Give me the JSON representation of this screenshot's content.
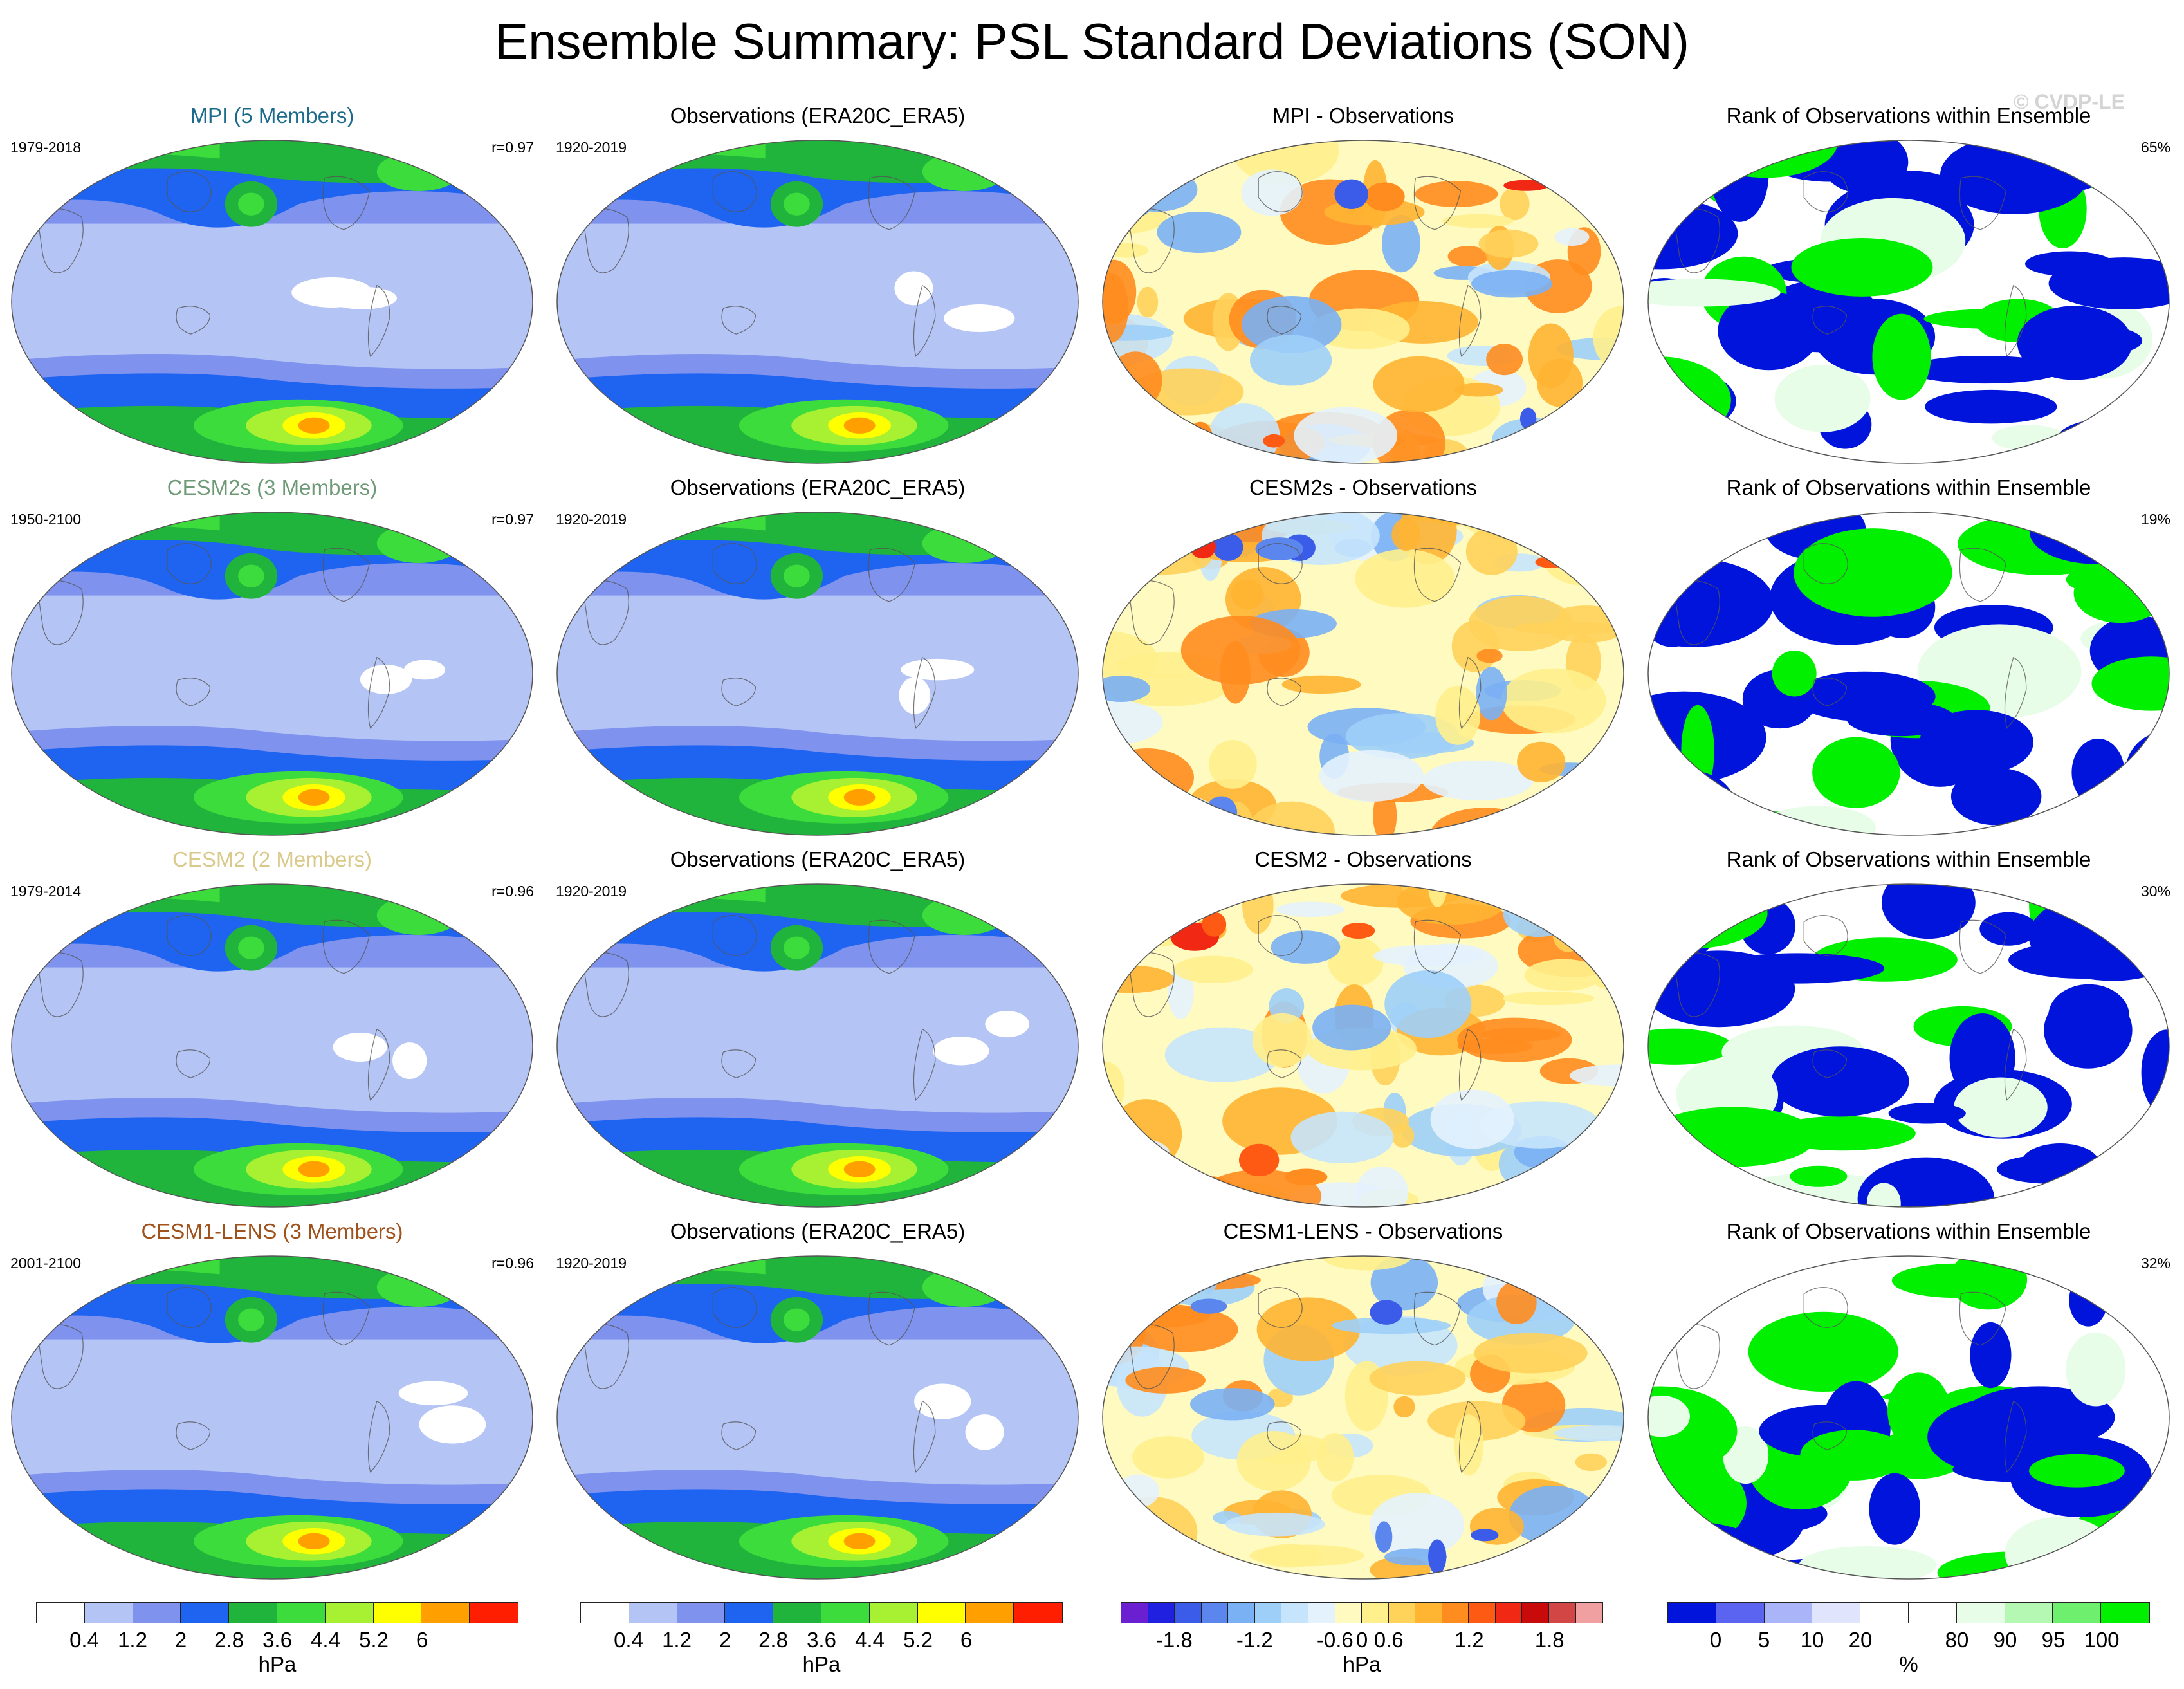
{
  "title": "Ensemble Summary: PSL Standard Deviations (SON)",
  "watermark": "© CVDP-LE",
  "chart_data": [
    {
      "type": "heatmap",
      "row": 0,
      "col": 0,
      "kind": "sd",
      "title": "MPI (5 Members)",
      "title_color": "#1c6b8c",
      "left_label": "1979-2018",
      "right_label": "r=0.97"
    },
    {
      "type": "heatmap",
      "row": 0,
      "col": 1,
      "kind": "sd",
      "title": "Observations (ERA20C_ERA5)",
      "title_color": "#000000",
      "left_label": "1920-2019",
      "right_label": ""
    },
    {
      "type": "heatmap",
      "row": 0,
      "col": 2,
      "kind": "diff",
      "title": "MPI - Observations",
      "title_color": "#000000",
      "left_label": "",
      "right_label": ""
    },
    {
      "type": "heatmap",
      "row": 0,
      "col": 3,
      "kind": "rank",
      "title": "Rank of Observations within Ensemble",
      "title_color": "#000000",
      "left_label": "",
      "right_label": "65%"
    },
    {
      "type": "heatmap",
      "row": 1,
      "col": 0,
      "kind": "sd",
      "title": "CESM2s (3 Members)",
      "title_color": "#6f9a77",
      "left_label": "1950-2100",
      "right_label": "r=0.97"
    },
    {
      "type": "heatmap",
      "row": 1,
      "col": 1,
      "kind": "sd",
      "title": "Observations (ERA20C_ERA5)",
      "title_color": "#000000",
      "left_label": "1920-2019",
      "right_label": ""
    },
    {
      "type": "heatmap",
      "row": 1,
      "col": 2,
      "kind": "diff",
      "title": "CESM2s - Observations",
      "title_color": "#000000",
      "left_label": "",
      "right_label": ""
    },
    {
      "type": "heatmap",
      "row": 1,
      "col": 3,
      "kind": "rank",
      "title": "Rank of Observations within Ensemble",
      "title_color": "#000000",
      "left_label": "",
      "right_label": "19%"
    },
    {
      "type": "heatmap",
      "row": 2,
      "col": 0,
      "kind": "sd",
      "title": "CESM2 (2 Members)",
      "title_color": "#d9c98a",
      "left_label": "1979-2014",
      "right_label": "r=0.96"
    },
    {
      "type": "heatmap",
      "row": 2,
      "col": 1,
      "kind": "sd",
      "title": "Observations (ERA20C_ERA5)",
      "title_color": "#000000",
      "left_label": "1920-2019",
      "right_label": ""
    },
    {
      "type": "heatmap",
      "row": 2,
      "col": 2,
      "kind": "diff",
      "title": "CESM2 - Observations",
      "title_color": "#000000",
      "left_label": "",
      "right_label": ""
    },
    {
      "type": "heatmap",
      "row": 2,
      "col": 3,
      "kind": "rank",
      "title": "Rank of Observations within Ensemble",
      "title_color": "#000000",
      "left_label": "",
      "right_label": "30%"
    },
    {
      "type": "heatmap",
      "row": 3,
      "col": 0,
      "kind": "sd",
      "title": "CESM1-LENS (3 Members)",
      "title_color": "#a0521d",
      "left_label": "2001-2100",
      "right_label": "r=0.96"
    },
    {
      "type": "heatmap",
      "row": 3,
      "col": 1,
      "kind": "sd",
      "title": "Observations (ERA20C_ERA5)",
      "title_color": "#000000",
      "left_label": "1920-2019",
      "right_label": ""
    },
    {
      "type": "heatmap",
      "row": 3,
      "col": 2,
      "kind": "diff",
      "title": "CESM1-LENS - Observations",
      "title_color": "#000000",
      "left_label": "",
      "right_label": ""
    },
    {
      "type": "heatmap",
      "row": 3,
      "col": 3,
      "kind": "rank",
      "title": "Rank of Observations within Ensemble",
      "title_color": "#000000",
      "left_label": "",
      "right_label": "32%"
    }
  ],
  "colorbars": [
    {
      "name": "sd-colorbar-1",
      "unit": "hPa",
      "colors": [
        "#ffffff",
        "#b4c4f5",
        "#7e92ee",
        "#1e64f0",
        "#20b43c",
        "#3cdc3c",
        "#a8f032",
        "#ffff00",
        "#ffa000",
        "#ff1e00"
      ],
      "ticks": [
        "0.4",
        "1.2",
        "2",
        "2.8",
        "3.6",
        "4.4",
        "5.2",
        "6"
      ],
      "tick_positions": [
        1,
        2,
        3,
        4,
        5,
        6,
        7,
        8
      ]
    },
    {
      "name": "sd-colorbar-2",
      "unit": "hPa",
      "colors": [
        "#ffffff",
        "#b4c4f5",
        "#7e92ee",
        "#1e64f0",
        "#20b43c",
        "#3cdc3c",
        "#a8f032",
        "#ffff00",
        "#ffa000",
        "#ff1e00"
      ],
      "ticks": [
        "0.4",
        "1.2",
        "2",
        "2.8",
        "3.6",
        "4.4",
        "5.2",
        "6"
      ],
      "tick_positions": [
        1,
        2,
        3,
        4,
        5,
        6,
        7,
        8
      ]
    },
    {
      "name": "diff-colorbar",
      "unit": "hPa",
      "colors": [
        "#6a1fd1",
        "#2020e0",
        "#3a5ce8",
        "#5a86ee",
        "#7ab0f4",
        "#9ecff8",
        "#c6e4fc",
        "#e4f2fd",
        "#fffac0",
        "#fff08c",
        "#ffd25a",
        "#ffb432",
        "#ff8c1e",
        "#ff5a14",
        "#f02814",
        "#c80a0a",
        "#d24646",
        "#f0a0a0"
      ],
      "ticks": [
        "-1.8",
        "-1.2",
        "-0.6",
        "0",
        "0.6",
        "1.2",
        "1.8"
      ],
      "tick_positions": [
        2,
        5,
        8,
        9,
        10,
        13,
        16
      ]
    },
    {
      "name": "rank-colorbar",
      "unit": "%",
      "colors": [
        "#0014dc",
        "#5a64f0",
        "#aab4f8",
        "#e0e4fc",
        "#ffffff",
        "#ffffff",
        "#e8fde8",
        "#b4f8b4",
        "#6ef06e",
        "#00f000"
      ],
      "ticks": [
        "0",
        "5",
        "10",
        "20",
        "80",
        "90",
        "95",
        "100"
      ],
      "tick_positions": [
        1,
        2,
        3,
        4,
        6,
        7,
        8,
        9
      ]
    }
  ]
}
